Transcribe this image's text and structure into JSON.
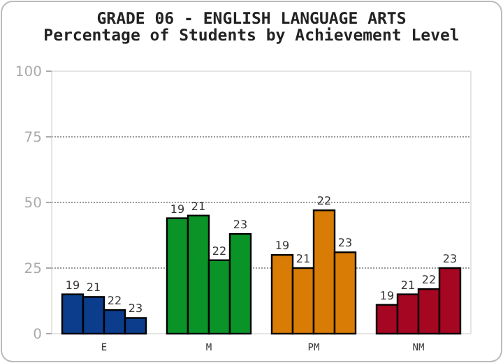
{
  "chart_data": {
    "type": "bar",
    "title": "GRADE 06 - ENGLISH LANGUAGE ARTS",
    "subtitle": "Percentage of Students by Achievement Level",
    "categories": [
      "E",
      "M",
      "PM",
      "NM"
    ],
    "series": [
      {
        "name": "19",
        "colors": [
          "#0b3d8c",
          "#0a9428",
          "#d87c06",
          "#a50621"
        ],
        "values": [
          15,
          44,
          30,
          11
        ]
      },
      {
        "name": "21",
        "colors": [
          "#0b3d8c",
          "#0a9428",
          "#d87c06",
          "#a50621"
        ],
        "values": [
          14,
          45,
          25,
          15
        ]
      },
      {
        "name": "22",
        "colors": [
          "#0b3d8c",
          "#0a9428",
          "#d87c06",
          "#a50621"
        ],
        "values": [
          9,
          28,
          47,
          17
        ]
      },
      {
        "name": "23",
        "colors": [
          "#0b3d8c",
          "#0a9428",
          "#d87c06",
          "#a50621"
        ],
        "values": [
          6,
          38,
          31,
          25
        ]
      }
    ],
    "ylim": [
      0,
      100
    ],
    "yticks": [
      0,
      25,
      50,
      75,
      100
    ],
    "grid": "y"
  }
}
